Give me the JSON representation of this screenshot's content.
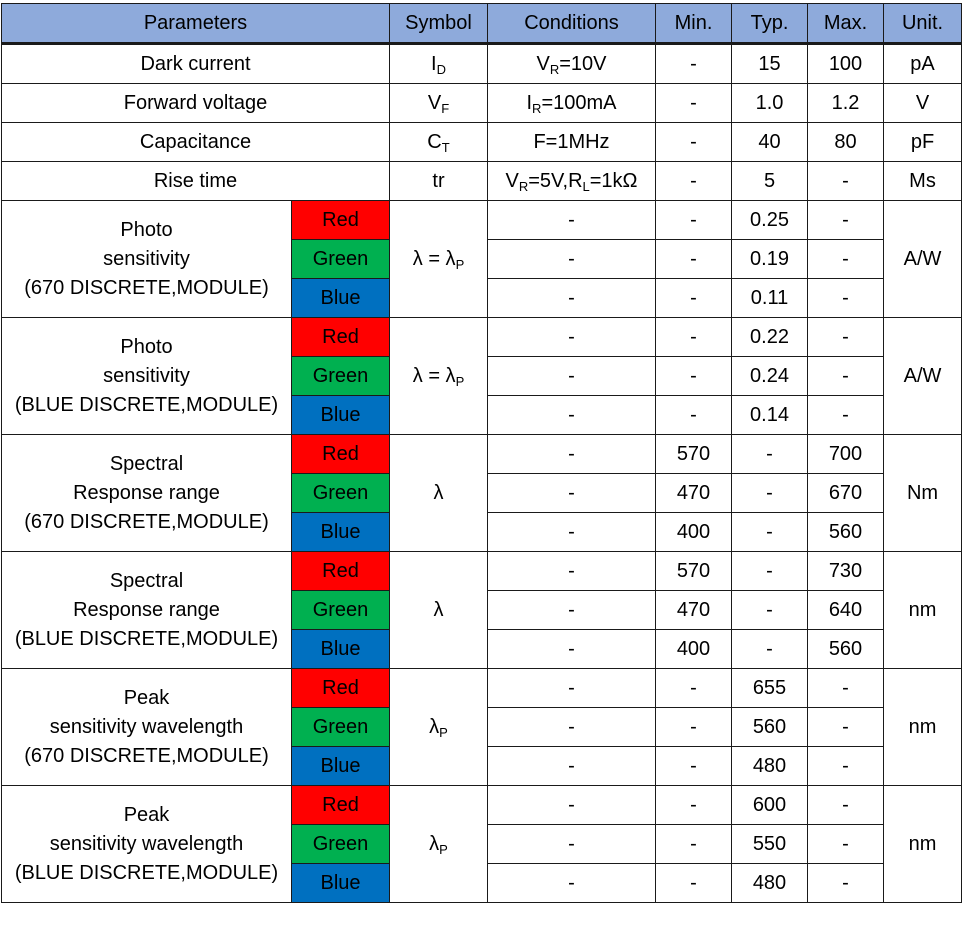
{
  "headers": {
    "parameters": "Parameters",
    "symbol": "Symbol",
    "conditions": "Conditions",
    "min": "Min.",
    "typ": "Typ.",
    "max": "Max.",
    "unit": "Unit."
  },
  "colors": {
    "header": "#8eaadb",
    "red": "#ff0000",
    "green": "#00b050",
    "blue": "#0070c0"
  },
  "simple_rows": [
    {
      "parameter": "Dark current",
      "symbol_main": "I",
      "symbol_sub": "D",
      "cond_1": "V",
      "cond_1_sub": "R",
      "cond_2": "=10V",
      "cond_3": "",
      "cond_3_sub": "",
      "cond_4": "",
      "min": "-",
      "typ": "15",
      "max": "100",
      "unit": "pA"
    },
    {
      "parameter": "Forward voltage",
      "symbol_main": "V",
      "symbol_sub": "F",
      "cond_1": "I",
      "cond_1_sub": "R",
      "cond_2": "=100mA",
      "cond_3": "",
      "cond_3_sub": "",
      "cond_4": "",
      "min": "-",
      "typ": "1.0",
      "max": "1.2",
      "unit": "V"
    },
    {
      "parameter": "Capacitance",
      "symbol_main": "C",
      "symbol_sub": "T",
      "cond_1": "F=1MHz",
      "cond_1_sub": "",
      "cond_2": "",
      "cond_3": "",
      "cond_3_sub": "",
      "cond_4": "",
      "min": "-",
      "typ": "40",
      "max": "80",
      "unit": "pF"
    },
    {
      "parameter": "Rise time",
      "symbol_main": "tr",
      "symbol_sub": "",
      "cond_1": "V",
      "cond_1_sub": "R",
      "cond_2": "=5V,R",
      "cond_3": "",
      "cond_3_sub": "L",
      "cond_4": "=1kΩ",
      "min": "-",
      "typ": "5",
      "max": "-",
      "unit": "Ms"
    }
  ],
  "groups": [
    {
      "param_line1": "Photo",
      "param_line2": "sensitivity",
      "param_line3": "(670 DISCRETE,MODULE)",
      "symbol_main": "λ = λ",
      "symbol_sub": "P",
      "unit": "A/W",
      "rows": [
        {
          "color": "Red",
          "cond": "-",
          "min": "-",
          "typ": "0.25",
          "max": "-"
        },
        {
          "color": "Green",
          "cond": "-",
          "min": "-",
          "typ": "0.19",
          "max": "-"
        },
        {
          "color": "Blue",
          "cond": "-",
          "min": "-",
          "typ": "0.11",
          "max": "-"
        }
      ]
    },
    {
      "param_line1": "Photo",
      "param_line2": "sensitivity",
      "param_line3": "(BLUE DISCRETE,MODULE)",
      "symbol_main": "λ = λ",
      "symbol_sub": "P",
      "unit": "A/W",
      "rows": [
        {
          "color": "Red",
          "cond": "-",
          "min": "-",
          "typ": "0.22",
          "max": "-"
        },
        {
          "color": "Green",
          "cond": "-",
          "min": "-",
          "typ": "0.24",
          "max": "-"
        },
        {
          "color": "Blue",
          "cond": "-",
          "min": "-",
          "typ": "0.14",
          "max": "-"
        }
      ]
    },
    {
      "param_line1": "Spectral",
      "param_line2": "Response range",
      "param_line3": "(670 DISCRETE,MODULE)",
      "symbol_main": "λ",
      "symbol_sub": "",
      "unit": "Nm",
      "rows": [
        {
          "color": "Red",
          "cond": "-",
          "min": "570",
          "typ": "-",
          "max": "700"
        },
        {
          "color": "Green",
          "cond": "-",
          "min": "470",
          "typ": "-",
          "max": "670"
        },
        {
          "color": "Blue",
          "cond": "-",
          "min": "400",
          "typ": "-",
          "max": "560"
        }
      ]
    },
    {
      "param_line1": "Spectral",
      "param_line2": "Response range",
      "param_line3": "(BLUE DISCRETE,MODULE)",
      "symbol_main": "λ",
      "symbol_sub": "",
      "unit": "nm",
      "rows": [
        {
          "color": "Red",
          "cond": "-",
          "min": "570",
          "typ": "-",
          "max": "730"
        },
        {
          "color": "Green",
          "cond": "-",
          "min": "470",
          "typ": "-",
          "max": "640"
        },
        {
          "color": "Blue",
          "cond": "-",
          "min": "400",
          "typ": "-",
          "max": "560"
        }
      ]
    },
    {
      "param_line1": "Peak",
      "param_line2": "sensitivity wavelength",
      "param_line3": "(670 DISCRETE,MODULE)",
      "symbol_main": "λ",
      "symbol_sub": "P",
      "unit": "nm",
      "rows": [
        {
          "color": "Red",
          "cond": "-",
          "min": "-",
          "typ": "655",
          "max": "-"
        },
        {
          "color": "Green",
          "cond": "-",
          "min": "-",
          "typ": "560",
          "max": "-"
        },
        {
          "color": "Blue",
          "cond": "-",
          "min": "-",
          "typ": "480",
          "max": "-"
        }
      ]
    },
    {
      "param_line1": "Peak",
      "param_line2": "sensitivity wavelength",
      "param_line3": "(BLUE DISCRETE,MODULE)",
      "symbol_main": "λ",
      "symbol_sub": "P",
      "unit": "nm",
      "rows": [
        {
          "color": "Red",
          "cond": "-",
          "min": "-",
          "typ": "600",
          "max": "-"
        },
        {
          "color": "Green",
          "cond": "-",
          "min": "-",
          "typ": "550",
          "max": "-"
        },
        {
          "color": "Blue",
          "cond": "-",
          "min": "-",
          "typ": "480",
          "max": "-"
        }
      ]
    }
  ]
}
